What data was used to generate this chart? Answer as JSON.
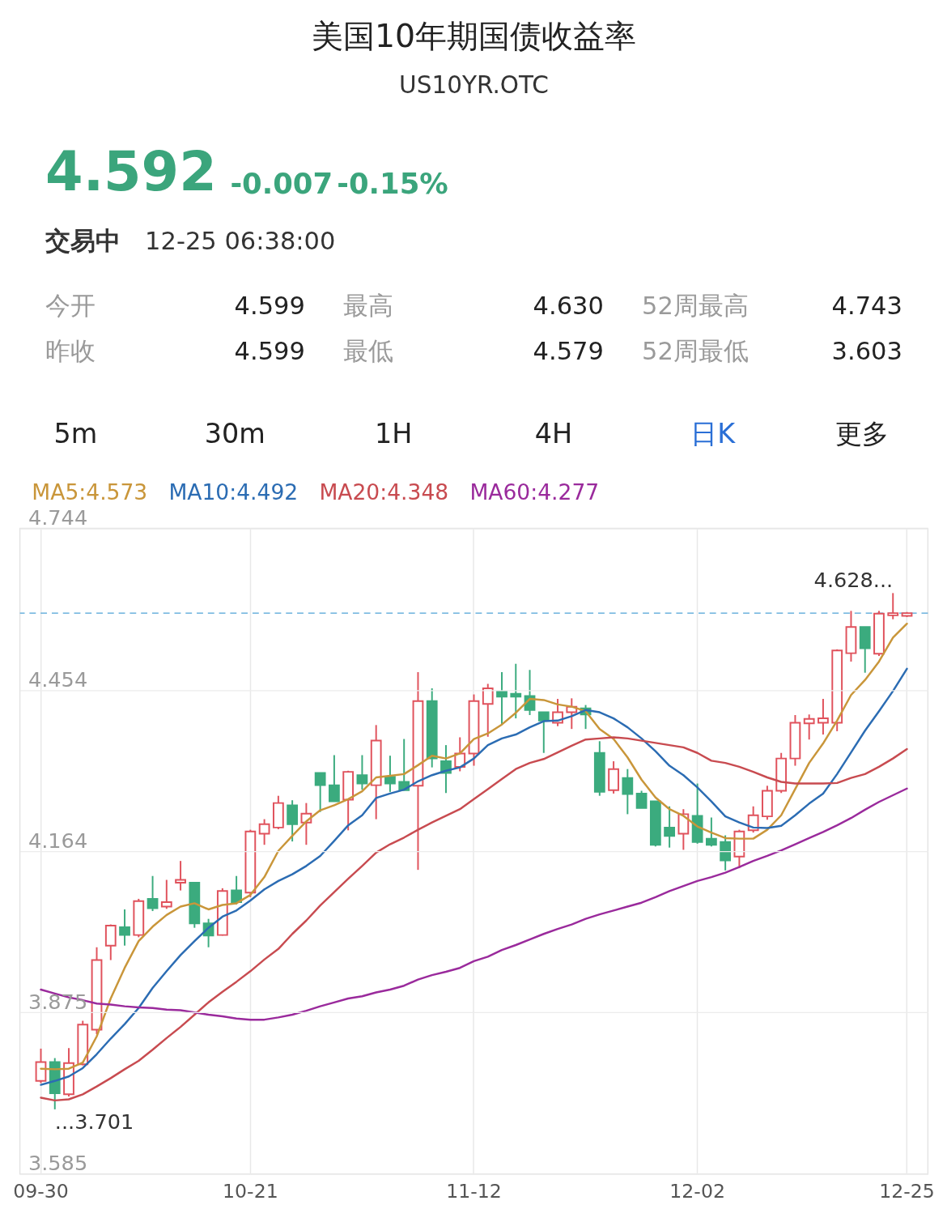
{
  "chart_data": [
    {
      "type": "other",
      "title": "美国10年期国债收益率",
      "subtitle": "US10YR.OTC",
      "annotations": [
        "4.592",
        "-0.007",
        "-0.15%",
        "交易中",
        "12-25 06:38:00",
        "今开",
        "4.599",
        "最高",
        "4.630",
        "52周最高",
        "4.743",
        "昨收",
        "4.599",
        "最低",
        "4.579",
        "52周最低",
        "3.603",
        "5m",
        "30m",
        "1H",
        "4H",
        "日K",
        "更多"
      ]
    },
    {
      "type": "candlestick",
      "categories": [
        "09-30",
        null,
        null,
        null,
        null,
        null,
        null,
        null,
        null,
        null,
        null,
        null,
        null,
        null,
        null,
        "10-21",
        null,
        null,
        null,
        null,
        null,
        null,
        null,
        null,
        null,
        null,
        null,
        null,
        null,
        null,
        null,
        "11-12",
        null,
        null,
        null,
        null,
        null,
        null,
        null,
        null,
        null,
        null,
        null,
        null,
        null,
        null,
        null,
        "12-02",
        null,
        null,
        null,
        null,
        null,
        null,
        null,
        null,
        null,
        null,
        null,
        null,
        null,
        null,
        "12-25"
      ],
      "ohlc": [
        [
          3.752,
          3.81,
          3.748,
          3.786
        ],
        [
          3.786,
          3.793,
          3.701,
          3.73
        ],
        [
          3.728,
          3.811,
          3.724,
          3.784
        ],
        [
          3.782,
          3.86,
          3.78,
          3.853
        ],
        [
          3.844,
          3.992,
          3.836,
          3.969
        ],
        [
          3.995,
          4.033,
          3.969,
          4.031
        ],
        [
          4.028,
          4.06,
          3.995,
          4.014
        ],
        [
          4.014,
          4.079,
          4.01,
          4.075
        ],
        [
          4.079,
          4.12,
          4.057,
          4.062
        ],
        [
          4.065,
          4.113,
          4.061,
          4.073
        ],
        [
          4.108,
          4.147,
          4.094,
          4.113
        ],
        [
          4.108,
          4.108,
          4.027,
          4.035
        ],
        [
          4.035,
          4.043,
          3.992,
          4.013
        ],
        [
          4.014,
          4.098,
          4.013,
          4.093
        ],
        [
          4.094,
          4.12,
          4.069,
          4.073
        ],
        [
          4.09,
          4.203,
          4.082,
          4.2
        ],
        [
          4.196,
          4.222,
          4.176,
          4.213
        ],
        [
          4.207,
          4.264,
          4.204,
          4.251
        ],
        [
          4.247,
          4.256,
          4.182,
          4.213
        ],
        [
          4.216,
          4.251,
          4.176,
          4.232
        ],
        [
          4.305,
          4.305,
          4.235,
          4.283
        ],
        [
          4.283,
          4.337,
          4.254,
          4.254
        ],
        [
          4.257,
          4.309,
          4.202,
          4.307
        ],
        [
          4.301,
          4.337,
          4.275,
          4.286
        ],
        [
          4.283,
          4.391,
          4.222,
          4.363
        ],
        [
          4.298,
          4.336,
          4.271,
          4.286
        ],
        [
          4.289,
          4.366,
          4.274,
          4.274
        ],
        [
          4.282,
          4.486,
          4.131,
          4.434
        ],
        [
          4.434,
          4.457,
          4.315,
          4.331
        ],
        [
          4.326,
          4.355,
          4.269,
          4.305
        ],
        [
          4.316,
          4.369,
          4.308,
          4.34
        ],
        [
          4.34,
          4.446,
          4.318,
          4.434
        ],
        [
          4.429,
          4.465,
          4.37,
          4.457
        ],
        [
          4.451,
          4.486,
          4.391,
          4.442
        ],
        [
          4.447,
          4.501,
          4.403,
          4.442
        ],
        [
          4.443,
          4.49,
          4.409,
          4.418
        ],
        [
          4.414,
          4.414,
          4.341,
          4.399
        ],
        [
          4.395,
          4.438,
          4.389,
          4.414
        ],
        [
          4.414,
          4.439,
          4.384,
          4.424
        ],
        [
          4.421,
          4.427,
          4.384,
          4.41
        ],
        [
          4.341,
          4.362,
          4.264,
          4.271
        ],
        [
          4.274,
          4.326,
          4.268,
          4.312
        ],
        [
          4.296,
          4.312,
          4.231,
          4.267
        ],
        [
          4.268,
          4.273,
          4.242,
          4.242
        ],
        [
          4.254,
          4.254,
          4.173,
          4.176
        ],
        [
          4.207,
          4.245,
          4.171,
          4.192
        ],
        [
          4.196,
          4.24,
          4.167,
          4.231
        ],
        [
          4.228,
          4.286,
          4.178,
          4.181
        ],
        [
          4.187,
          4.225,
          4.173,
          4.176
        ],
        [
          4.181,
          4.193,
          4.13,
          4.148
        ],
        [
          4.155,
          4.203,
          4.134,
          4.2
        ],
        [
          4.202,
          4.245,
          4.198,
          4.229
        ],
        [
          4.227,
          4.282,
          4.221,
          4.273
        ],
        [
          4.273,
          4.341,
          4.269,
          4.331
        ],
        [
          4.331,
          4.409,
          4.318,
          4.395
        ],
        [
          4.394,
          4.41,
          4.365,
          4.402
        ],
        [
          4.395,
          4.438,
          4.374,
          4.403
        ],
        [
          4.395,
          4.527,
          4.38,
          4.525
        ],
        [
          4.52,
          4.596,
          4.505,
          4.567
        ],
        [
          4.567,
          4.567,
          4.485,
          4.529
        ],
        [
          4.519,
          4.596,
          4.515,
          4.591
        ],
        [
          4.588,
          4.628,
          4.581,
          4.592
        ],
        [
          4.587,
          4.594,
          4.585,
          4.592
        ]
      ],
      "colors": [
        "#e0525c",
        "#3bab7e",
        "#e0525c",
        "#e0525c",
        "#e0525c",
        "#e0525c",
        "#3bab7e",
        "#e0525c",
        "#3bab7e",
        "#e0525c",
        "#e0525c",
        "#3bab7e",
        "#3bab7e",
        "#e0525c",
        "#3bab7e",
        "#e0525c",
        "#e0525c",
        "#e0525c",
        "#3bab7e",
        "#e0525c",
        "#3bab7e",
        "#3bab7e",
        "#e0525c",
        "#3bab7e",
        "#e0525c",
        "#3bab7e",
        "#3bab7e",
        "#e0525c",
        "#3bab7e",
        "#3bab7e",
        "#e0525c",
        "#e0525c",
        "#e0525c",
        "#3bab7e",
        "#3bab7e",
        "#3bab7e",
        "#3bab7e",
        "#e0525c",
        "#e0525c",
        "#3bab7e",
        "#3bab7e",
        "#e0525c",
        "#3bab7e",
        "#3bab7e",
        "#3bab7e",
        "#3bab7e",
        "#e0525c",
        "#3bab7e",
        "#3bab7e",
        "#3bab7e",
        "#e0525c",
        "#e0525c",
        "#e0525c",
        "#e0525c",
        "#e0525c",
        "#e0525c",
        "#e0525c",
        "#e0525c",
        "#e0525c",
        "#3bab7e",
        "#e0525c",
        "#e0525c",
        "#e0525c"
      ],
      "series": [
        {
          "name": "MA5:4.573",
          "type": "line",
          "color": "#c9963a",
          "values": [
            3.774,
            3.773,
            3.774,
            3.785,
            3.832,
            3.9,
            3.955,
            4.003,
            4.029,
            4.05,
            4.065,
            4.071,
            4.06,
            4.068,
            4.071,
            4.086,
            4.118,
            4.165,
            4.192,
            4.218,
            4.238,
            4.247,
            4.258,
            4.272,
            4.297,
            4.3,
            4.303,
            4.319,
            4.336,
            4.331,
            4.34,
            4.366,
            4.376,
            4.392,
            4.413,
            4.438,
            4.436,
            4.428,
            4.424,
            4.416,
            4.384,
            4.366,
            4.333,
            4.293,
            4.261,
            4.24,
            4.228,
            4.209,
            4.198,
            4.188,
            4.187,
            4.187,
            4.203,
            4.229,
            4.276,
            4.323,
            4.358,
            4.399,
            4.445,
            4.472,
            4.505,
            4.548,
            4.573
          ]
        },
        {
          "name": "MA10:4.492",
          "type": "line",
          "color": "#2b6cb3",
          "values": [
            3.745,
            3.752,
            3.76,
            3.775,
            3.8,
            3.828,
            3.854,
            3.883,
            3.919,
            3.949,
            3.978,
            4.003,
            4.027,
            4.047,
            4.058,
            4.076,
            4.096,
            4.111,
            4.123,
            4.138,
            4.156,
            4.183,
            4.211,
            4.229,
            4.26,
            4.268,
            4.275,
            4.29,
            4.301,
            4.309,
            4.315,
            4.331,
            4.355,
            4.367,
            4.374,
            4.387,
            4.398,
            4.399,
            4.407,
            4.418,
            4.414,
            4.403,
            4.387,
            4.367,
            4.344,
            4.318,
            4.301,
            4.279,
            4.254,
            4.227,
            4.216,
            4.207,
            4.206,
            4.21,
            4.229,
            4.25,
            4.268,
            4.303,
            4.342,
            4.381,
            4.416,
            4.452,
            4.492
          ]
        },
        {
          "name": "MA20:4.348",
          "type": "line",
          "color": "#c84b50",
          "values": [
            3.722,
            3.717,
            3.719,
            3.728,
            3.742,
            3.757,
            3.773,
            3.788,
            3.808,
            3.829,
            3.849,
            3.871,
            3.893,
            3.912,
            3.93,
            3.949,
            3.97,
            3.989,
            4.016,
            4.04,
            4.067,
            4.091,
            4.115,
            4.138,
            4.162,
            4.177,
            4.189,
            4.203,
            4.216,
            4.228,
            4.24,
            4.258,
            4.276,
            4.294,
            4.312,
            4.323,
            4.33,
            4.342,
            4.354,
            4.365,
            4.367,
            4.369,
            4.367,
            4.363,
            4.359,
            4.355,
            4.351,
            4.341,
            4.327,
            4.323,
            4.316,
            4.307,
            4.297,
            4.289,
            4.286,
            4.286,
            4.286,
            4.287,
            4.296,
            4.303,
            4.316,
            4.331,
            4.348
          ]
        },
        {
          "name": "MA60:4.277",
          "type": "line",
          "color": "#9a2a9c",
          "values": [
            3.916,
            3.909,
            3.902,
            3.897,
            3.891,
            3.889,
            3.886,
            3.884,
            3.883,
            3.88,
            3.879,
            3.875,
            3.871,
            3.868,
            3.864,
            3.862,
            3.862,
            3.866,
            3.871,
            3.878,
            3.886,
            3.893,
            3.9,
            3.904,
            3.911,
            3.916,
            3.923,
            3.934,
            3.942,
            3.948,
            3.955,
            3.967,
            3.975,
            3.987,
            3.996,
            4.006,
            4.016,
            4.025,
            4.033,
            4.043,
            4.051,
            4.058,
            4.065,
            4.072,
            4.082,
            4.093,
            4.102,
            4.111,
            4.118,
            4.126,
            4.136,
            4.147,
            4.156,
            4.166,
            4.177,
            4.188,
            4.199,
            4.211,
            4.224,
            4.239,
            4.253,
            4.265,
            4.277
          ]
        }
      ],
      "ylim": [
        3.585,
        4.744
      ],
      "yticks": [
        3.585,
        3.875,
        4.164,
        4.454,
        4.744
      ],
      "grid": true,
      "legend": "top left",
      "ref_lines": [
        {
          "axis": "y",
          "value": 4.592,
          "color": "#4fa3d6",
          "line_style": "dashed"
        }
      ],
      "annotations": [
        "4.628...",
        "...3.701"
      ]
    }
  ]
}
